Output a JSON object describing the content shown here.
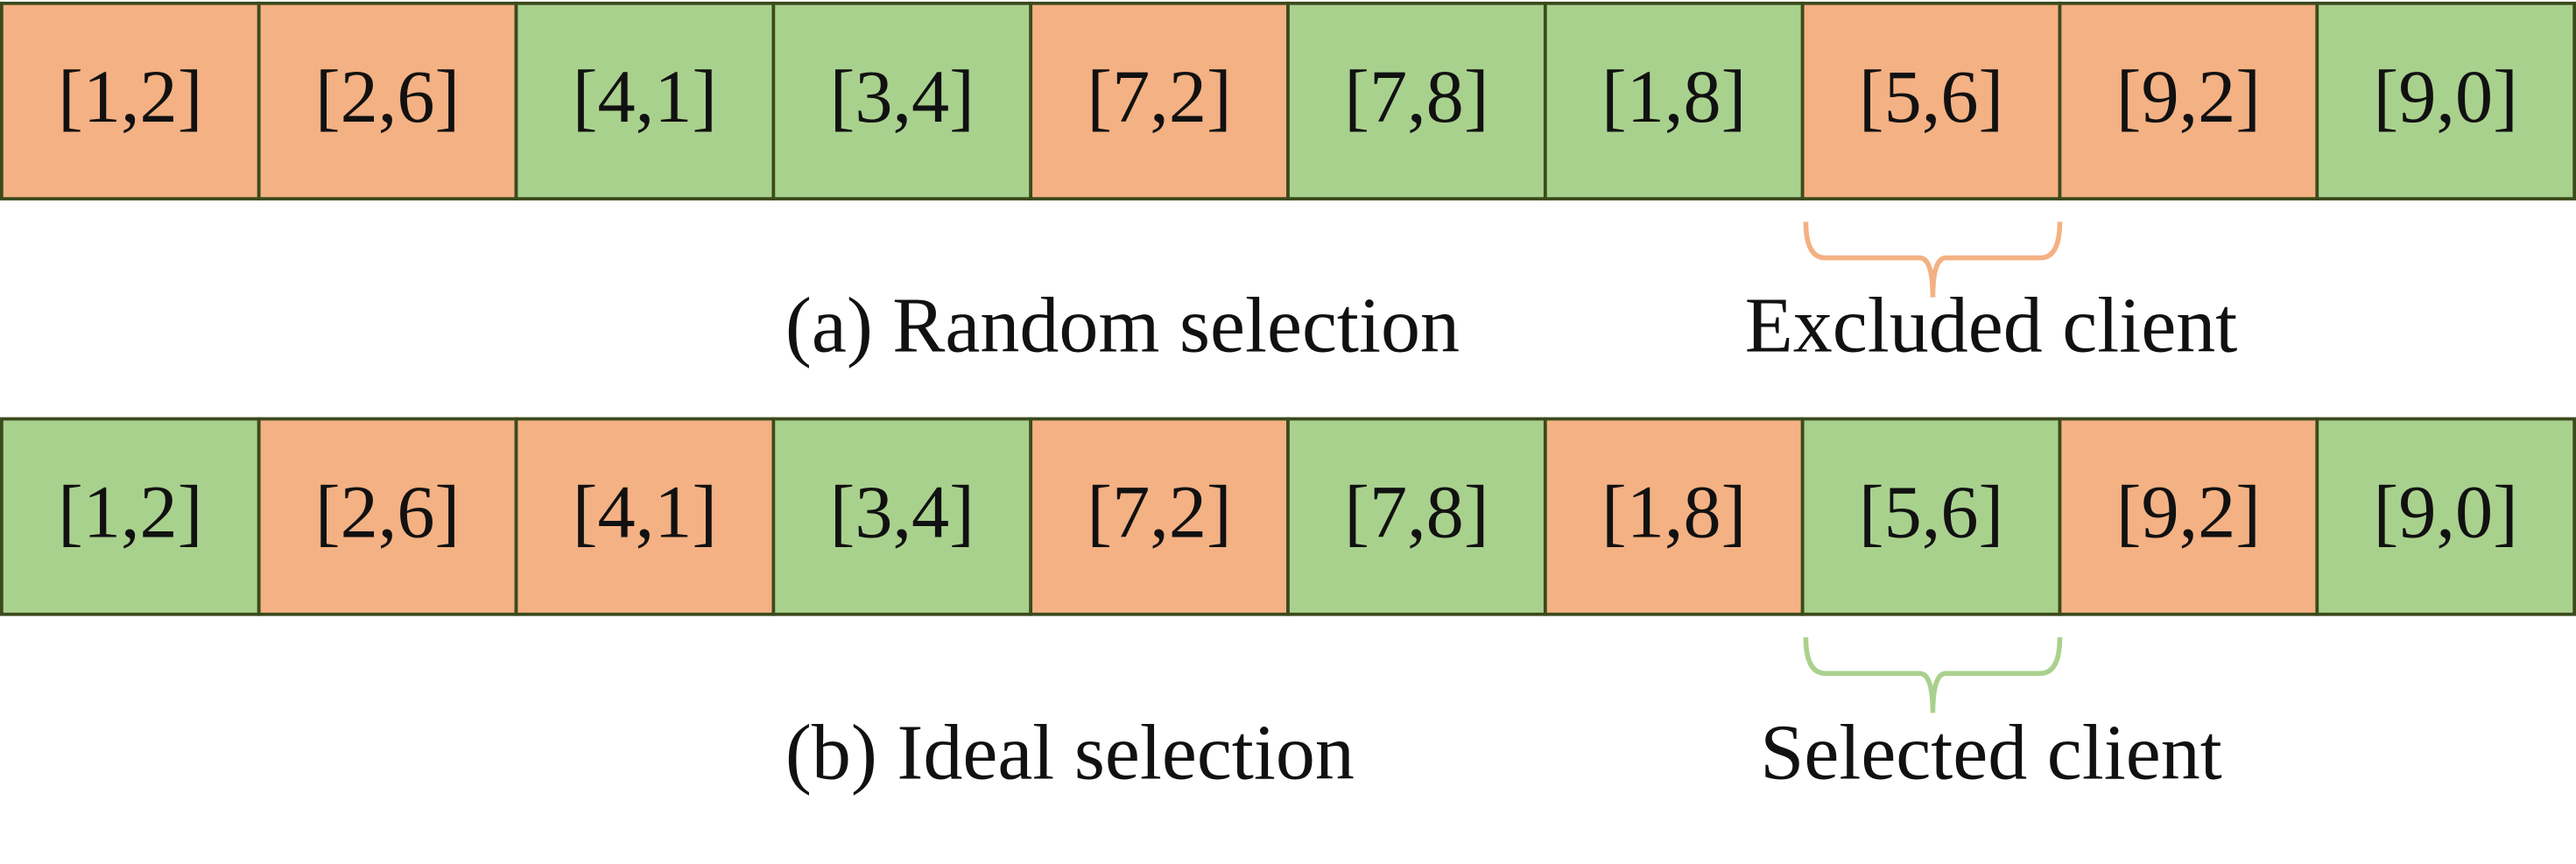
{
  "rows": [
    {
      "caption": "(a) Random selection",
      "brace_label": "Excluded client",
      "brace_color": "#f4b183",
      "cells": [
        {
          "label": "[1,2]",
          "color": "#f4b183"
        },
        {
          "label": "[2,6]",
          "color": "#f4b183"
        },
        {
          "label": "[4,1]",
          "color": "#a9d18e"
        },
        {
          "label": "[3,4]",
          "color": "#a9d18e"
        },
        {
          "label": "[7,2]",
          "color": "#f4b183"
        },
        {
          "label": "[7,8]",
          "color": "#a9d18e"
        },
        {
          "label": "[1,8]",
          "color": "#a9d18e"
        },
        {
          "label": "[5,6]",
          "color": "#f4b183"
        },
        {
          "label": "[9,2]",
          "color": "#f4b183"
        },
        {
          "label": "[9,0]",
          "color": "#a9d18e"
        }
      ]
    },
    {
      "caption": "(b) Ideal selection",
      "brace_label": "Selected client",
      "brace_color": "#a9d18e",
      "cells": [
        {
          "label": "[1,2]",
          "color": "#a9d18e"
        },
        {
          "label": "[2,6]",
          "color": "#f4b183"
        },
        {
          "label": "[4,1]",
          "color": "#f4b183"
        },
        {
          "label": "[3,4]",
          "color": "#a9d18e"
        },
        {
          "label": "[7,2]",
          "color": "#f4b183"
        },
        {
          "label": "[7,8]",
          "color": "#a9d18e"
        },
        {
          "label": "[1,8]",
          "color": "#f4b183"
        },
        {
          "label": "[5,6]",
          "color": "#a9d18e"
        },
        {
          "label": "[9,2]",
          "color": "#f4b183"
        },
        {
          "label": "[9,0]",
          "color": "#a9d18e"
        }
      ]
    }
  ]
}
